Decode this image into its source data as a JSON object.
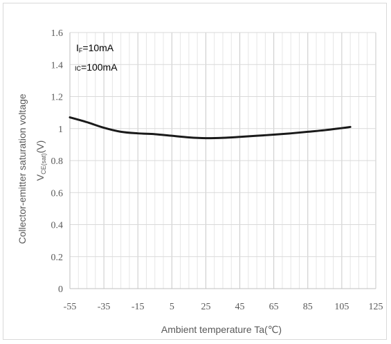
{
  "chart_data": {
    "type": "line",
    "title": "",
    "xlabel": "Ambient temperature Ta(℃)",
    "ylabel_main": "Collector-emitter saturation voltage",
    "ylabel_symbol": "V",
    "ylabel_subscript": "CE(sat)",
    "ylabel_unit": "(V)",
    "xlim": [
      -55,
      125
    ],
    "ylim": [
      0,
      1.6
    ],
    "x_ticks": [
      -55,
      -35,
      -15,
      5,
      25,
      45,
      65,
      85,
      105,
      125
    ],
    "y_ticks": [
      "0",
      "0.2",
      "0.4",
      "0.6",
      "0.8",
      "1",
      "1.2",
      "1.4",
      "1.6"
    ],
    "grid": true,
    "legend": "none",
    "annotations": [
      {
        "symbol": "I",
        "subscript": "F",
        "value": "=10mA"
      },
      {
        "symbol": "I",
        "subscript": "C",
        "value": "=100mA"
      }
    ],
    "series": [
      {
        "color": "#1a1a1a",
        "x": [
          -55,
          -45,
          -35,
          -25,
          -15,
          -5,
          5,
          15,
          25,
          35,
          45,
          55,
          65,
          75,
          85,
          95,
          105,
          110
        ],
        "y": [
          1.07,
          1.04,
          1.005,
          0.98,
          0.97,
          0.965,
          0.955,
          0.945,
          0.94,
          0.942,
          0.948,
          0.955,
          0.962,
          0.97,
          0.98,
          0.99,
          1.003,
          1.01
        ]
      }
    ]
  }
}
